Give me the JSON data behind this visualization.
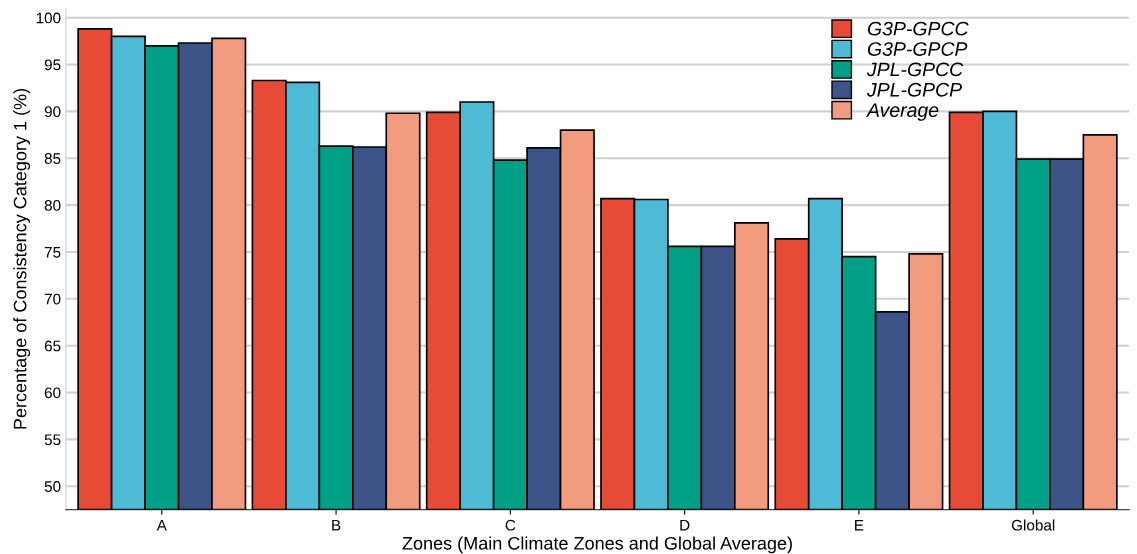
{
  "chart_data": {
    "type": "bar",
    "xlabel": "Zones (Main Climate Zones and Global Average)",
    "ylabel": "Percentage of Consistency Category 1 (%)",
    "categories": [
      "A",
      "B",
      "C",
      "D",
      "E",
      "Global"
    ],
    "series": [
      {
        "name": "G3P-GPCC",
        "color": "#e64b35",
        "values": [
          98.8,
          93.3,
          89.9,
          80.7,
          76.4,
          89.9
        ]
      },
      {
        "name": "G3P-GPCP",
        "color": "#4dbbd5",
        "values": [
          98.0,
          93.1,
          91.0,
          80.6,
          80.7,
          90.0
        ]
      },
      {
        "name": "JPL-GPCC",
        "color": "#00a087",
        "values": [
          97.0,
          86.3,
          84.8,
          75.6,
          74.5,
          84.9
        ]
      },
      {
        "name": "JPL-GPCP",
        "color": "#3c5488",
        "values": [
          97.3,
          86.2,
          86.1,
          75.6,
          68.6,
          84.9
        ]
      },
      {
        "name": "Average",
        "color": "#f39b7f",
        "values": [
          97.8,
          89.8,
          88.0,
          78.1,
          74.8,
          87.5
        ]
      }
    ],
    "ylim": [
      47.5,
      101
    ],
    "yticks": [
      50,
      55,
      60,
      65,
      70,
      75,
      80,
      85,
      90,
      95,
      100
    ],
    "grid": "y",
    "legend": "top right"
  }
}
